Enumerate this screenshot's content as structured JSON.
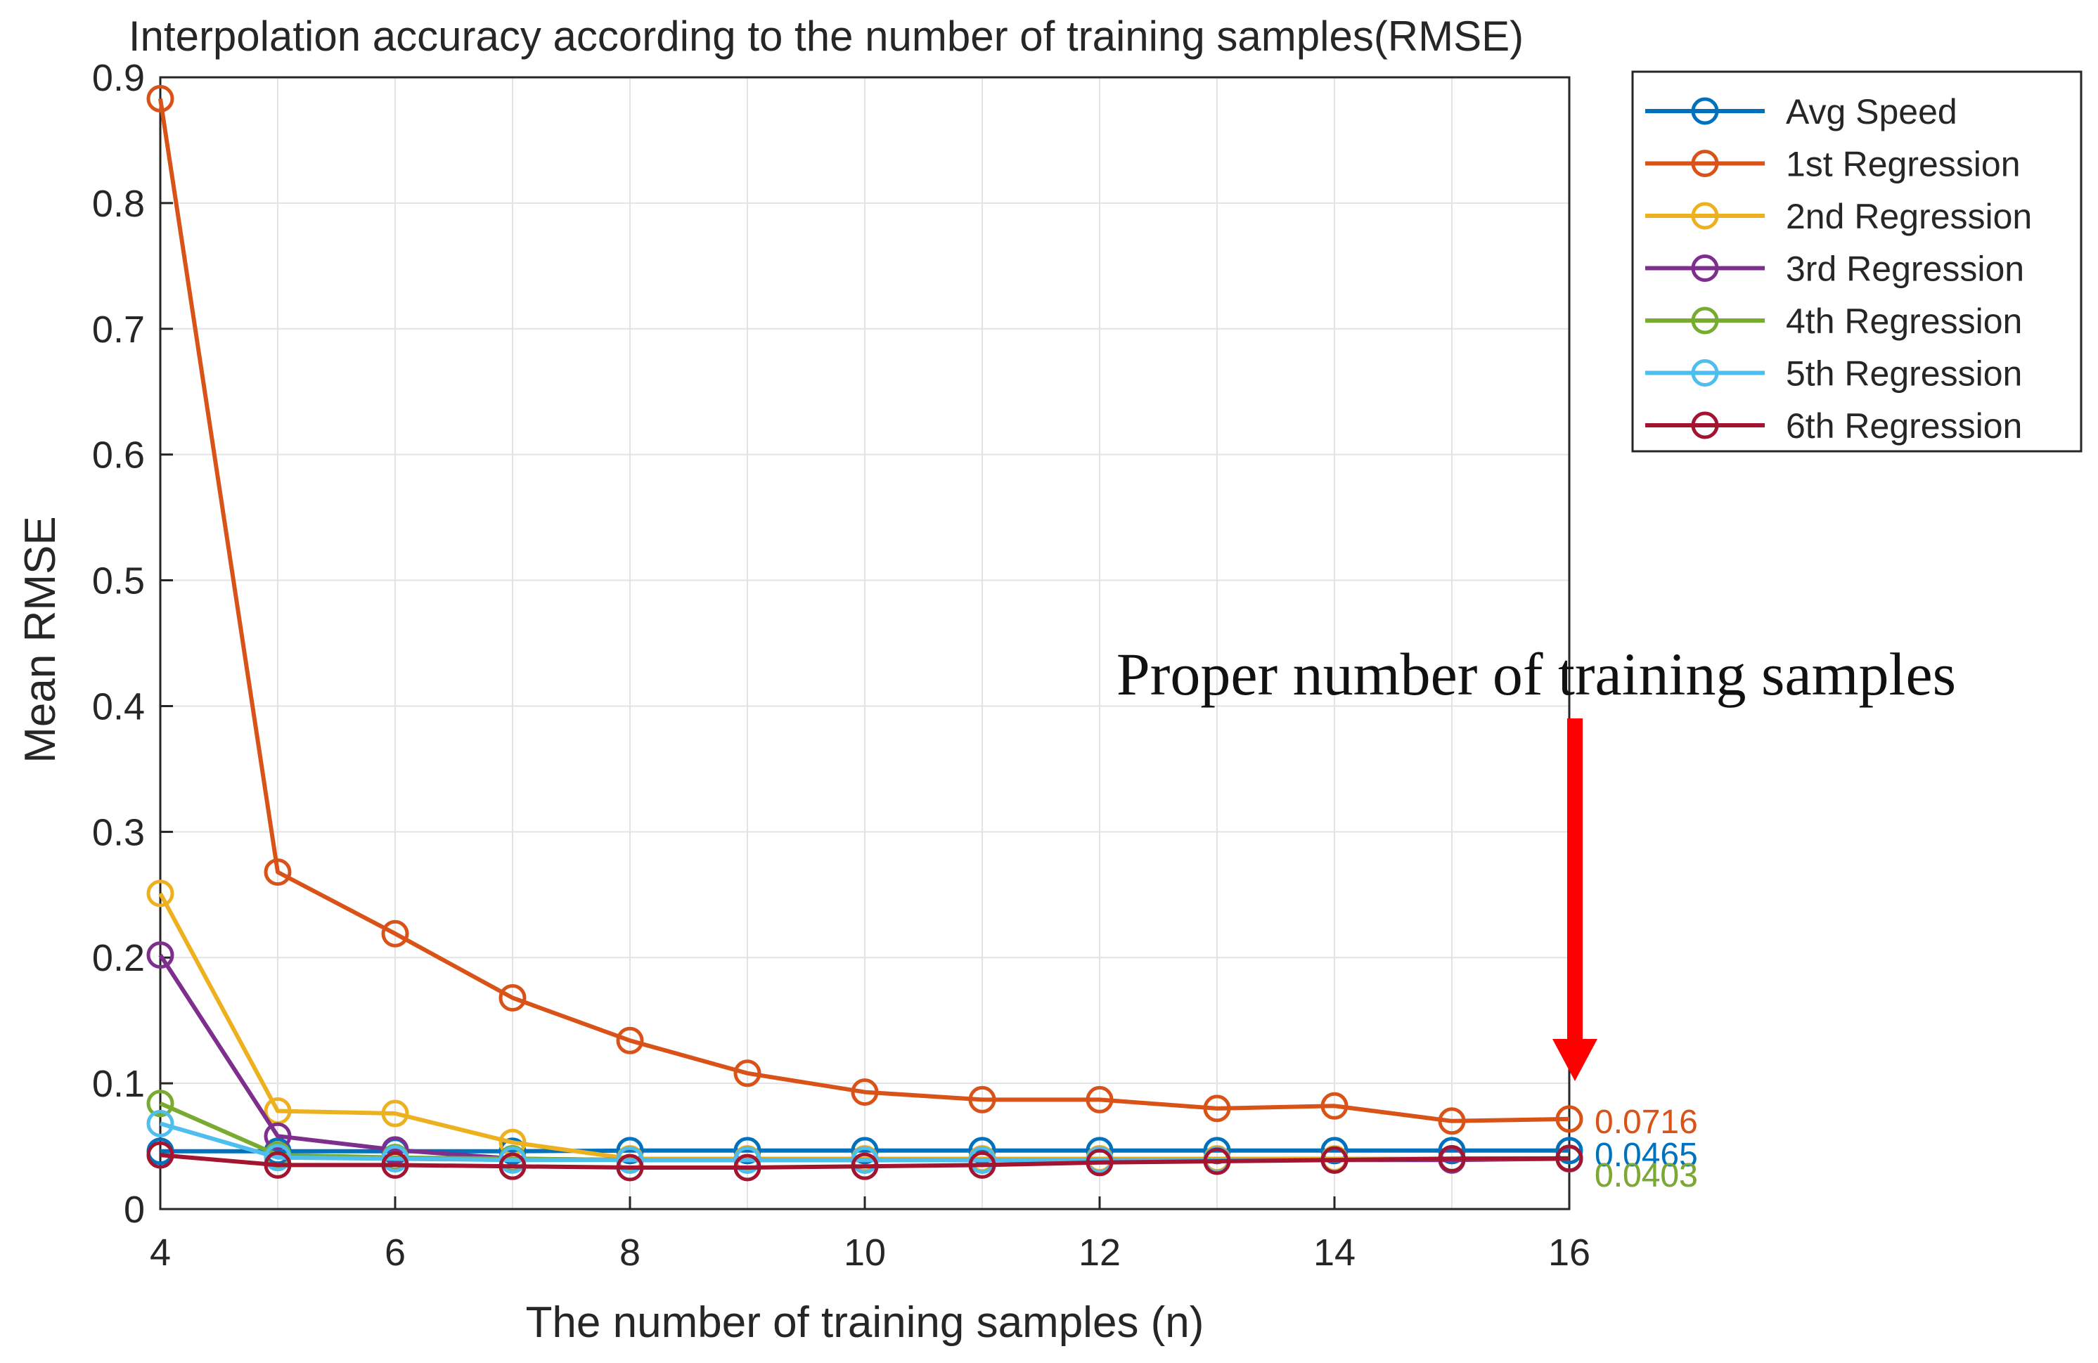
{
  "chart_data": {
    "type": "line",
    "title": "Interpolation accuracy according to the number of training samples(RMSE)",
    "xlabel": "The number of training samples (n)",
    "ylabel": "Mean RMSE",
    "xlim": [
      4,
      16
    ],
    "ylim": [
      0,
      0.9
    ],
    "xticks": [
      4,
      6,
      8,
      10,
      12,
      14,
      16
    ],
    "yticks": [
      0,
      0.1,
      0.2,
      0.3,
      0.4,
      0.5,
      0.6,
      0.7,
      0.8,
      0.9
    ],
    "ytick_labels": [
      "0",
      "0.1",
      "0.2",
      "0.3",
      "0.4",
      "0.5",
      "0.6",
      "0.7",
      "0.8",
      "0.9"
    ],
    "grid": true,
    "legend_position": "top-right outside",
    "x": [
      4,
      5,
      6,
      7,
      8,
      9,
      10,
      11,
      12,
      13,
      14,
      15,
      16
    ],
    "series": [
      {
        "name": "Avg Speed",
        "color": "#0072BD",
        "values": [
          0.046,
          0.046,
          0.046,
          0.046,
          0.0465,
          0.0465,
          0.0465,
          0.0465,
          0.0465,
          0.0465,
          0.0465,
          0.0465,
          0.0465
        ]
      },
      {
        "name": "1st Regression",
        "color": "#D95319",
        "values": [
          0.883,
          0.268,
          0.219,
          0.168,
          0.134,
          0.108,
          0.093,
          0.087,
          0.087,
          0.08,
          0.082,
          0.07,
          0.0716
        ]
      },
      {
        "name": "2nd Regression",
        "color": "#EDB120",
        "values": [
          0.251,
          0.078,
          0.076,
          0.053,
          0.04,
          0.04,
          0.04,
          0.04,
          0.04,
          0.04,
          0.04,
          0.04,
          0.04
        ]
      },
      {
        "name": "3rd Regression",
        "color": "#7E2F8E",
        "values": [
          0.202,
          0.058,
          0.047,
          0.04,
          0.039,
          0.039,
          0.039,
          0.039,
          0.039,
          0.039,
          0.039,
          0.039,
          0.04
        ]
      },
      {
        "name": "4th Regression",
        "color": "#77AC30",
        "values": [
          0.084,
          0.043,
          0.041,
          0.04,
          0.039,
          0.039,
          0.039,
          0.039,
          0.039,
          0.039,
          0.039,
          0.04,
          0.0403
        ]
      },
      {
        "name": "5th Regression",
        "color": "#4DBEEE",
        "values": [
          0.068,
          0.041,
          0.04,
          0.039,
          0.039,
          0.039,
          0.039,
          0.039,
          0.039,
          0.039,
          0.039,
          0.04,
          0.0403
        ]
      },
      {
        "name": "6th Regression",
        "color": "#A2142F",
        "values": [
          0.043,
          0.035,
          0.035,
          0.034,
          0.033,
          0.033,
          0.034,
          0.035,
          0.037,
          0.038,
          0.039,
          0.04,
          0.0403
        ]
      }
    ],
    "end_labels": [
      {
        "text": "0.0716",
        "color": "#D95319",
        "value": 0.0716
      },
      {
        "text": "0.0465",
        "color": "#0072BD",
        "value": 0.0465
      },
      {
        "text": "0.0403",
        "color": "#A2142F",
        "value": 0.0403
      },
      {
        "text": "0.0403",
        "color": "#77AC30",
        "value": 0.0403
      }
    ],
    "annotation": {
      "text": "Proper number of training samples",
      "color": "#FF0000",
      "target_x": 16
    }
  }
}
